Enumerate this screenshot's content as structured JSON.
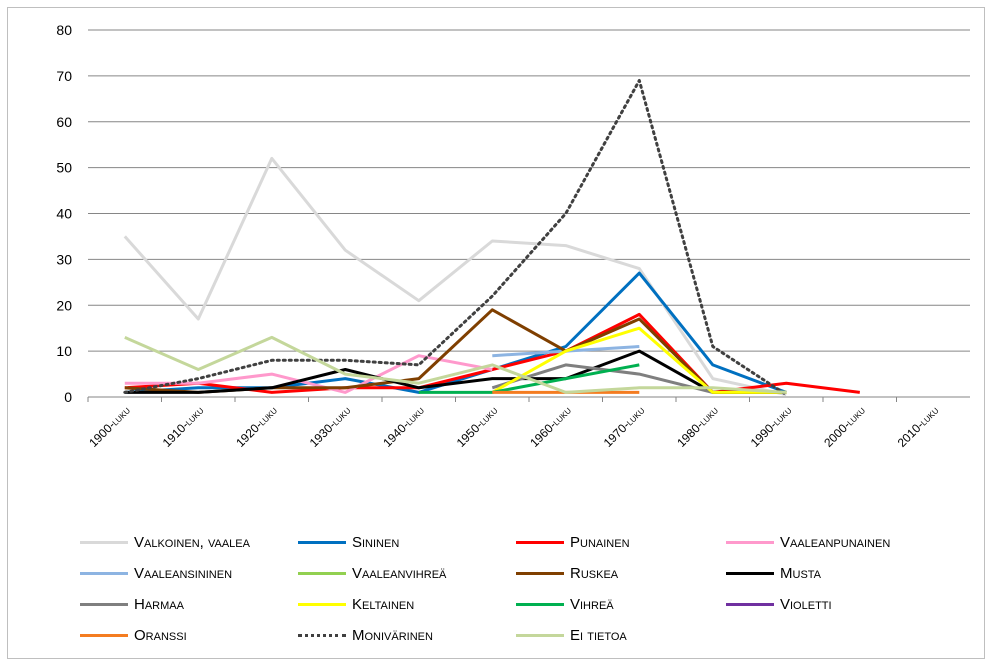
{
  "chart_data": {
    "type": "line",
    "categories": [
      "1900-luku",
      "1910-luku",
      "1920-luku",
      "1930-luku",
      "1940-luku",
      "1950-luku",
      "1960-luku",
      "1970-luku",
      "1980-luku",
      "1990-luku",
      "2000-luku",
      "2010-luku"
    ],
    "ylim": [
      0,
      80
    ],
    "yticks": [
      0,
      10,
      20,
      30,
      40,
      50,
      60,
      70,
      80
    ],
    "grid": true,
    "legend_position": "bottom",
    "series": [
      {
        "name": "Valkoinen, vaalea",
        "color": "#d9d9d9",
        "style": "solid",
        "values": [
          35,
          17,
          52,
          32,
          21,
          34,
          33,
          28,
          4,
          0.5,
          null,
          null
        ]
      },
      {
        "name": "Sininen",
        "color": "#0070c0",
        "style": "solid",
        "values": [
          1,
          2,
          2,
          4,
          1,
          6,
          11,
          27,
          7,
          1,
          null,
          null
        ]
      },
      {
        "name": "Punainen",
        "color": "#ff0000",
        "style": "solid",
        "values": [
          2,
          3,
          1,
          2,
          2,
          6,
          10,
          18,
          1,
          3,
          1,
          null
        ]
      },
      {
        "name": "Vaaleanpunainen",
        "color": "#ff99cc",
        "style": "solid",
        "values": [
          3,
          3,
          5,
          1,
          9,
          6,
          null,
          null,
          null,
          null,
          null,
          null
        ]
      },
      {
        "name": "Vaaleansininen",
        "color": "#8db4e2",
        "style": "solid",
        "values": [
          null,
          null,
          null,
          null,
          null,
          9,
          10,
          11,
          null,
          null,
          null,
          null
        ]
      },
      {
        "name": "Vaaleanvihreä",
        "color": "#92d050",
        "style": "solid",
        "values": [
          null,
          null,
          null,
          null,
          null,
          null,
          null,
          null,
          null,
          null,
          null,
          null
        ]
      },
      {
        "name": "Ruskea",
        "color": "#7f3f00",
        "style": "solid",
        "values": [
          2,
          1,
          2,
          2,
          4,
          19,
          10,
          17,
          1,
          1,
          null,
          null
        ]
      },
      {
        "name": "Musta",
        "color": "#000000",
        "style": "solid",
        "values": [
          1,
          1,
          2,
          6,
          2,
          4,
          4,
          10,
          1,
          1,
          null,
          null
        ]
      },
      {
        "name": "Harmaa",
        "color": "#7f7f7f",
        "style": "solid",
        "values": [
          null,
          null,
          null,
          null,
          null,
          2,
          7,
          5,
          1,
          null,
          null,
          null
        ]
      },
      {
        "name": "Keltainen",
        "color": "#ffff00",
        "style": "solid",
        "values": [
          null,
          null,
          null,
          null,
          null,
          1,
          10,
          15,
          1,
          1,
          null,
          null
        ]
      },
      {
        "name": "Vihreä",
        "color": "#00b050",
        "style": "solid",
        "values": [
          null,
          null,
          null,
          null,
          1,
          1,
          4,
          7,
          null,
          null,
          null,
          null
        ]
      },
      {
        "name": "Violetti",
        "color": "#7030a0",
        "style": "solid",
        "values": [
          null,
          null,
          null,
          null,
          null,
          null,
          null,
          null,
          null,
          null,
          null,
          null
        ]
      },
      {
        "name": "Oranssi",
        "color": "#f47c20",
        "style": "solid",
        "values": [
          null,
          null,
          null,
          null,
          null,
          1,
          1,
          1,
          null,
          null,
          null,
          null
        ]
      },
      {
        "name": "Monivärinen",
        "color": "#404040",
        "style": "dotted",
        "values": [
          1,
          4,
          8,
          8,
          7,
          22,
          40,
          69,
          11,
          0.5,
          null,
          null
        ]
      },
      {
        "name": "Ei tietoa",
        "color": "#c4d79b",
        "style": "solid",
        "values": [
          13,
          6,
          13,
          5,
          3,
          7,
          1,
          2,
          2,
          1,
          null,
          null
        ]
      }
    ]
  }
}
